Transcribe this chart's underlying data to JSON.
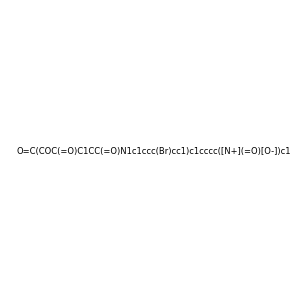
{
  "smiles": "O=C(COC(=O)C1CC(=O)N1c1ccc(Br)cc1)c1cccc([N+](=O)[O-])c1",
  "image_size": 300,
  "background_color": "#e8e8e8",
  "atom_colors": {
    "N": "#0000ff",
    "O": "#ff0000",
    "Br": "#a52a2a"
  }
}
